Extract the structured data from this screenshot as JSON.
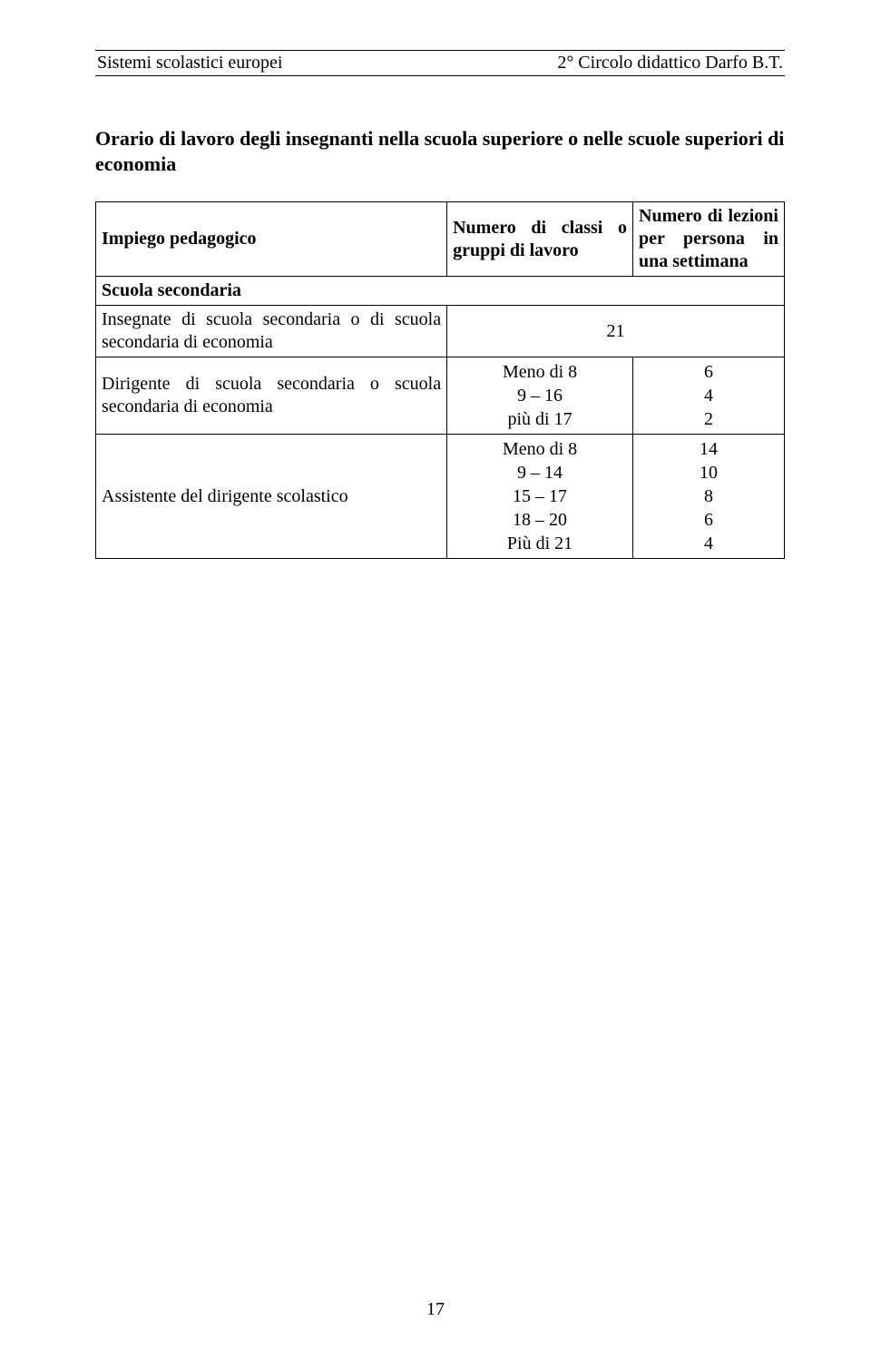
{
  "header": {
    "left": "Sistemi scolastici europei",
    "right": "2° Circolo didattico Darfo B.T."
  },
  "title": "Orario di lavoro degli insegnanti nella scuola superiore o nelle scuole superiori di economia",
  "table": {
    "head": {
      "c1": "Impiego pedagogico",
      "c2": "Numero di classi o gruppi di lavoro",
      "c3": "Numero di lezioni per persona in una settimana"
    },
    "r_sub": "Scuola secondaria",
    "r1": {
      "c1": "Insegnate di scuola secondaria o di scuola secondaria di economia",
      "c3": "21"
    },
    "r2": {
      "c1": "Dirigente di scuola secondaria o scuola secondaria di economia",
      "c2_l1": "Meno di 8",
      "c2_l2": "9 – 16",
      "c2_l3": "più di 17",
      "c3_l1": "6",
      "c3_l2": "4",
      "c3_l3": "2"
    },
    "r3": {
      "c1": "Assistente del dirigente scolastico",
      "c2_l1": "Meno di 8",
      "c2_l2": "9 – 14",
      "c2_l3": "15 – 17",
      "c2_l4": "18 – 20",
      "c2_l5": "Più di 21",
      "c3_l1": "14",
      "c3_l2": "10",
      "c3_l3": "8",
      "c3_l4": "6",
      "c3_l5": "4"
    }
  },
  "page_number": "17"
}
